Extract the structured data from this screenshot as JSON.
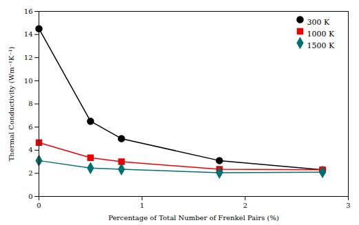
{
  "chart_data": {
    "type": "line",
    "xlabel": "Percentage of Total Number of Frenkel Pairs (%)",
    "ylabel": "Thermal Conductivity (Wm⁻¹K⁻¹)",
    "x": [
      0.0,
      0.5,
      0.8,
      1.75,
      2.75
    ],
    "series": [
      {
        "name": "300 K",
        "color": "#000000",
        "marker": "circle",
        "values": [
          14.5,
          6.5,
          5.0,
          3.1,
          2.3
        ]
      },
      {
        "name": "1000 K",
        "color": "#ee0000",
        "marker": "square",
        "values": [
          4.65,
          3.35,
          3.0,
          2.35,
          2.3
        ]
      },
      {
        "name": "1500 K",
        "color": "#007070",
        "marker": "diamond",
        "values": [
          3.1,
          2.45,
          2.35,
          2.05,
          2.1
        ]
      }
    ],
    "xlim": [
      0,
      3
    ],
    "ylim": [
      0,
      16
    ],
    "xticks": [
      0,
      1,
      2,
      3
    ],
    "yticks": [
      0,
      2,
      4,
      6,
      8,
      10,
      12,
      14,
      16
    ],
    "grid": false,
    "legend": "upper right"
  }
}
